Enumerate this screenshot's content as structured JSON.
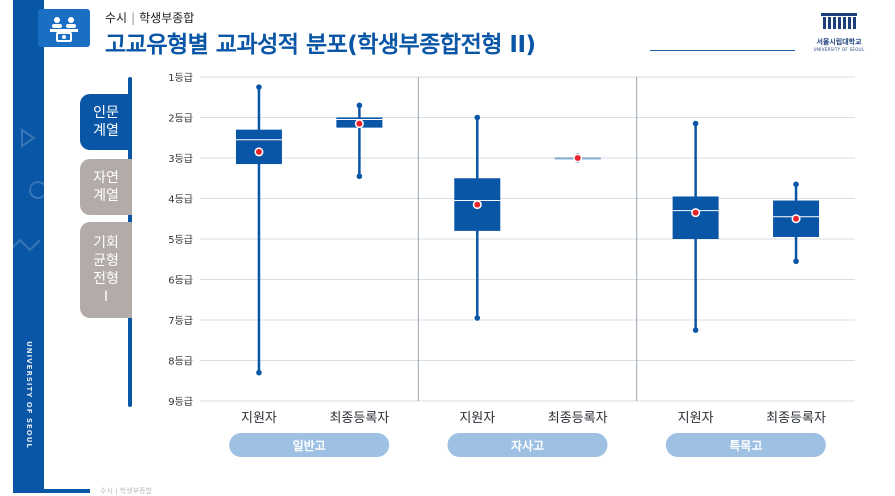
{
  "header": {
    "category": "수시",
    "subcategory": "학생부종합",
    "title": "고교유형별 교과성적 분포(학생부종합전형 II)"
  },
  "logo": {
    "name": "서울시립대학교",
    "name_en": "UNIVERSITY OF SEOUL"
  },
  "side_text": "UNIVERSITY OF SEOUL",
  "tabs": [
    {
      "label": "인문\n계열",
      "active": true
    },
    {
      "label": "자연\n계열",
      "active": false
    },
    {
      "label": "기회\n균형\n전형\nI",
      "active": false
    }
  ],
  "footer_text": "수시 | 학생부종합",
  "chart_data": {
    "type": "boxplot",
    "y_ticks": [
      "1등급",
      "2등급",
      "3등급",
      "4등급",
      "5등급",
      "6등급",
      "7등급",
      "8등급",
      "9등급"
    ],
    "ylim": [
      1,
      9
    ],
    "y_inverted": true,
    "grid": true,
    "groups": [
      {
        "name": "일반고",
        "categories": [
          "지원자",
          "최종등록자"
        ]
      },
      {
        "name": "자사고",
        "categories": [
          "지원자",
          "최종등록자"
        ]
      },
      {
        "name": "특목고",
        "categories": [
          "지원자",
          "최종등록자"
        ]
      }
    ],
    "boxes": [
      {
        "group": "일반고",
        "category": "지원자",
        "min": 1.25,
        "q1": 2.3,
        "median": 2.55,
        "q3": 3.15,
        "max": 8.3,
        "mean": 2.85
      },
      {
        "group": "일반고",
        "category": "최종등록자",
        "min": 1.7,
        "q1": 2.0,
        "median": 2.05,
        "q3": 2.25,
        "max": 3.45,
        "mean": 2.15
      },
      {
        "group": "자사고",
        "category": "지원자",
        "min": 2.0,
        "q1": 3.5,
        "median": 4.05,
        "q3": 4.8,
        "max": 6.95,
        "mean": 4.15
      },
      {
        "group": "자사고",
        "category": "최종등록자",
        "min": 2.95,
        "q1": 2.98,
        "median": 3.0,
        "q3": 3.03,
        "max": 3.05,
        "mean": 3.0
      },
      {
        "group": "특목고",
        "category": "지원자",
        "min": 2.15,
        "q1": 3.95,
        "median": 4.3,
        "q3": 5.0,
        "max": 7.25,
        "mean": 4.35
      },
      {
        "group": "특목고",
        "category": "최종등록자",
        "min": 3.65,
        "q1": 4.05,
        "median": 4.45,
        "q3": 4.95,
        "max": 5.55,
        "mean": 4.5
      }
    ],
    "colors": {
      "box": "#0a56a6",
      "mean_dot": "#e8262b",
      "group_pill": "#9ec0e3",
      "grid": "#d9dee5",
      "divider": "#9aa6b2"
    }
  }
}
